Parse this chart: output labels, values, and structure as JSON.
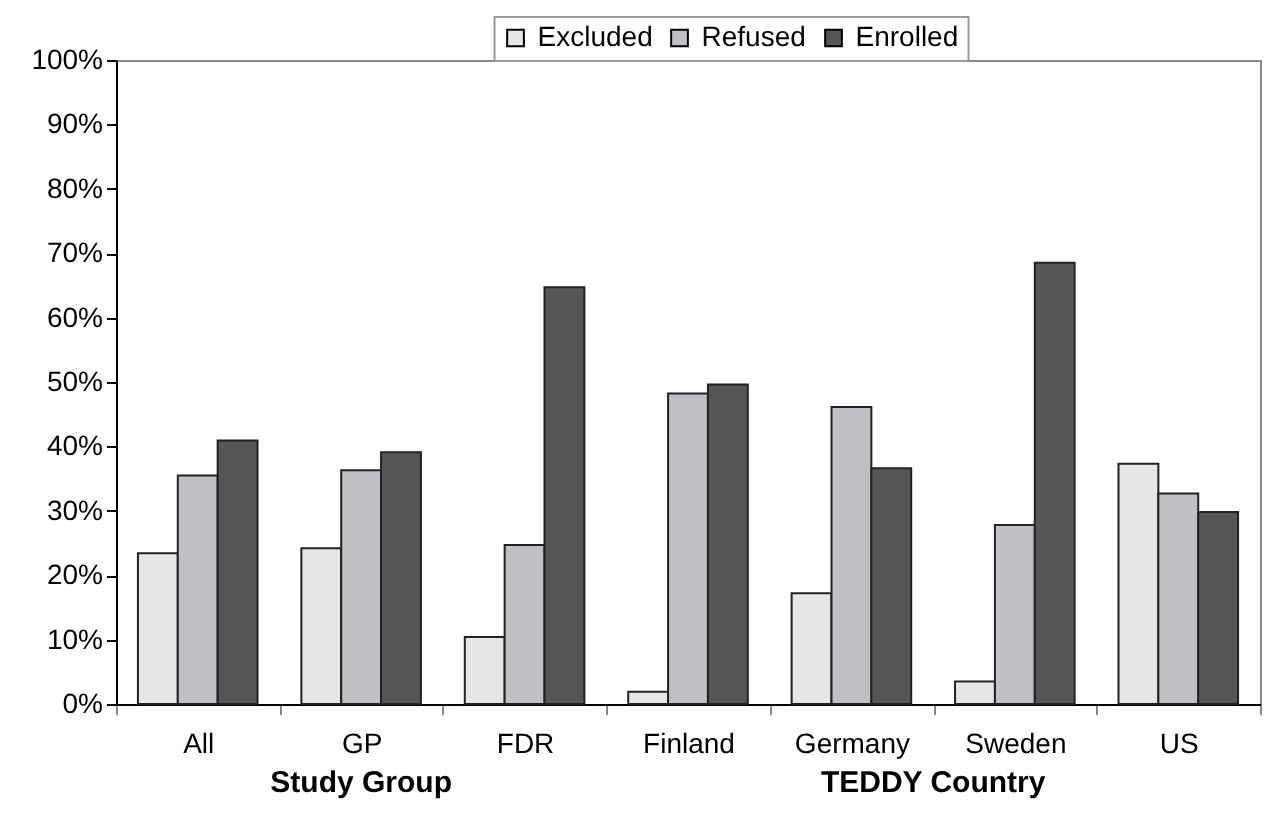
{
  "chart_data": {
    "type": "bar",
    "xlabel": "Study Group",
    "annotations": [
      "TEDDY Country"
    ],
    "categories": [
      "All",
      "GP",
      "FDR",
      "Finland",
      "Germany",
      "Sweden",
      "US"
    ],
    "series": [
      {
        "name": "Excluded",
        "color": "#e6e6e6",
        "values": [
          23.4,
          24.2,
          10.4,
          1.9,
          17.2,
          3.5,
          37.3
        ]
      },
      {
        "name": "Refused",
        "color": "#c0c0c4",
        "values": [
          35.5,
          36.3,
          24.7,
          48.2,
          46.1,
          27.8,
          32.7
        ]
      },
      {
        "name": "Enrolled",
        "color": "#545658",
        "values": [
          40.9,
          39.1,
          64.7,
          49.6,
          36.6,
          68.5,
          29.8
        ]
      }
    ],
    "ylim": [
      0,
      100
    ],
    "yticks": [
      {
        "value": 0,
        "label": "0%"
      },
      {
        "value": 10,
        "label": "10%"
      },
      {
        "value": 20,
        "label": "20%"
      },
      {
        "value": 30,
        "label": "30%"
      },
      {
        "value": 40,
        "label": "40%"
      },
      {
        "value": 50,
        "label": "50%"
      },
      {
        "value": 60,
        "label": "60%"
      },
      {
        "value": 70,
        "label": "70%"
      },
      {
        "value": 80,
        "label": "80%"
      },
      {
        "value": 90,
        "label": "90%"
      },
      {
        "value": 100,
        "label": "100%"
      }
    ],
    "grid": false,
    "legend": "top"
  }
}
